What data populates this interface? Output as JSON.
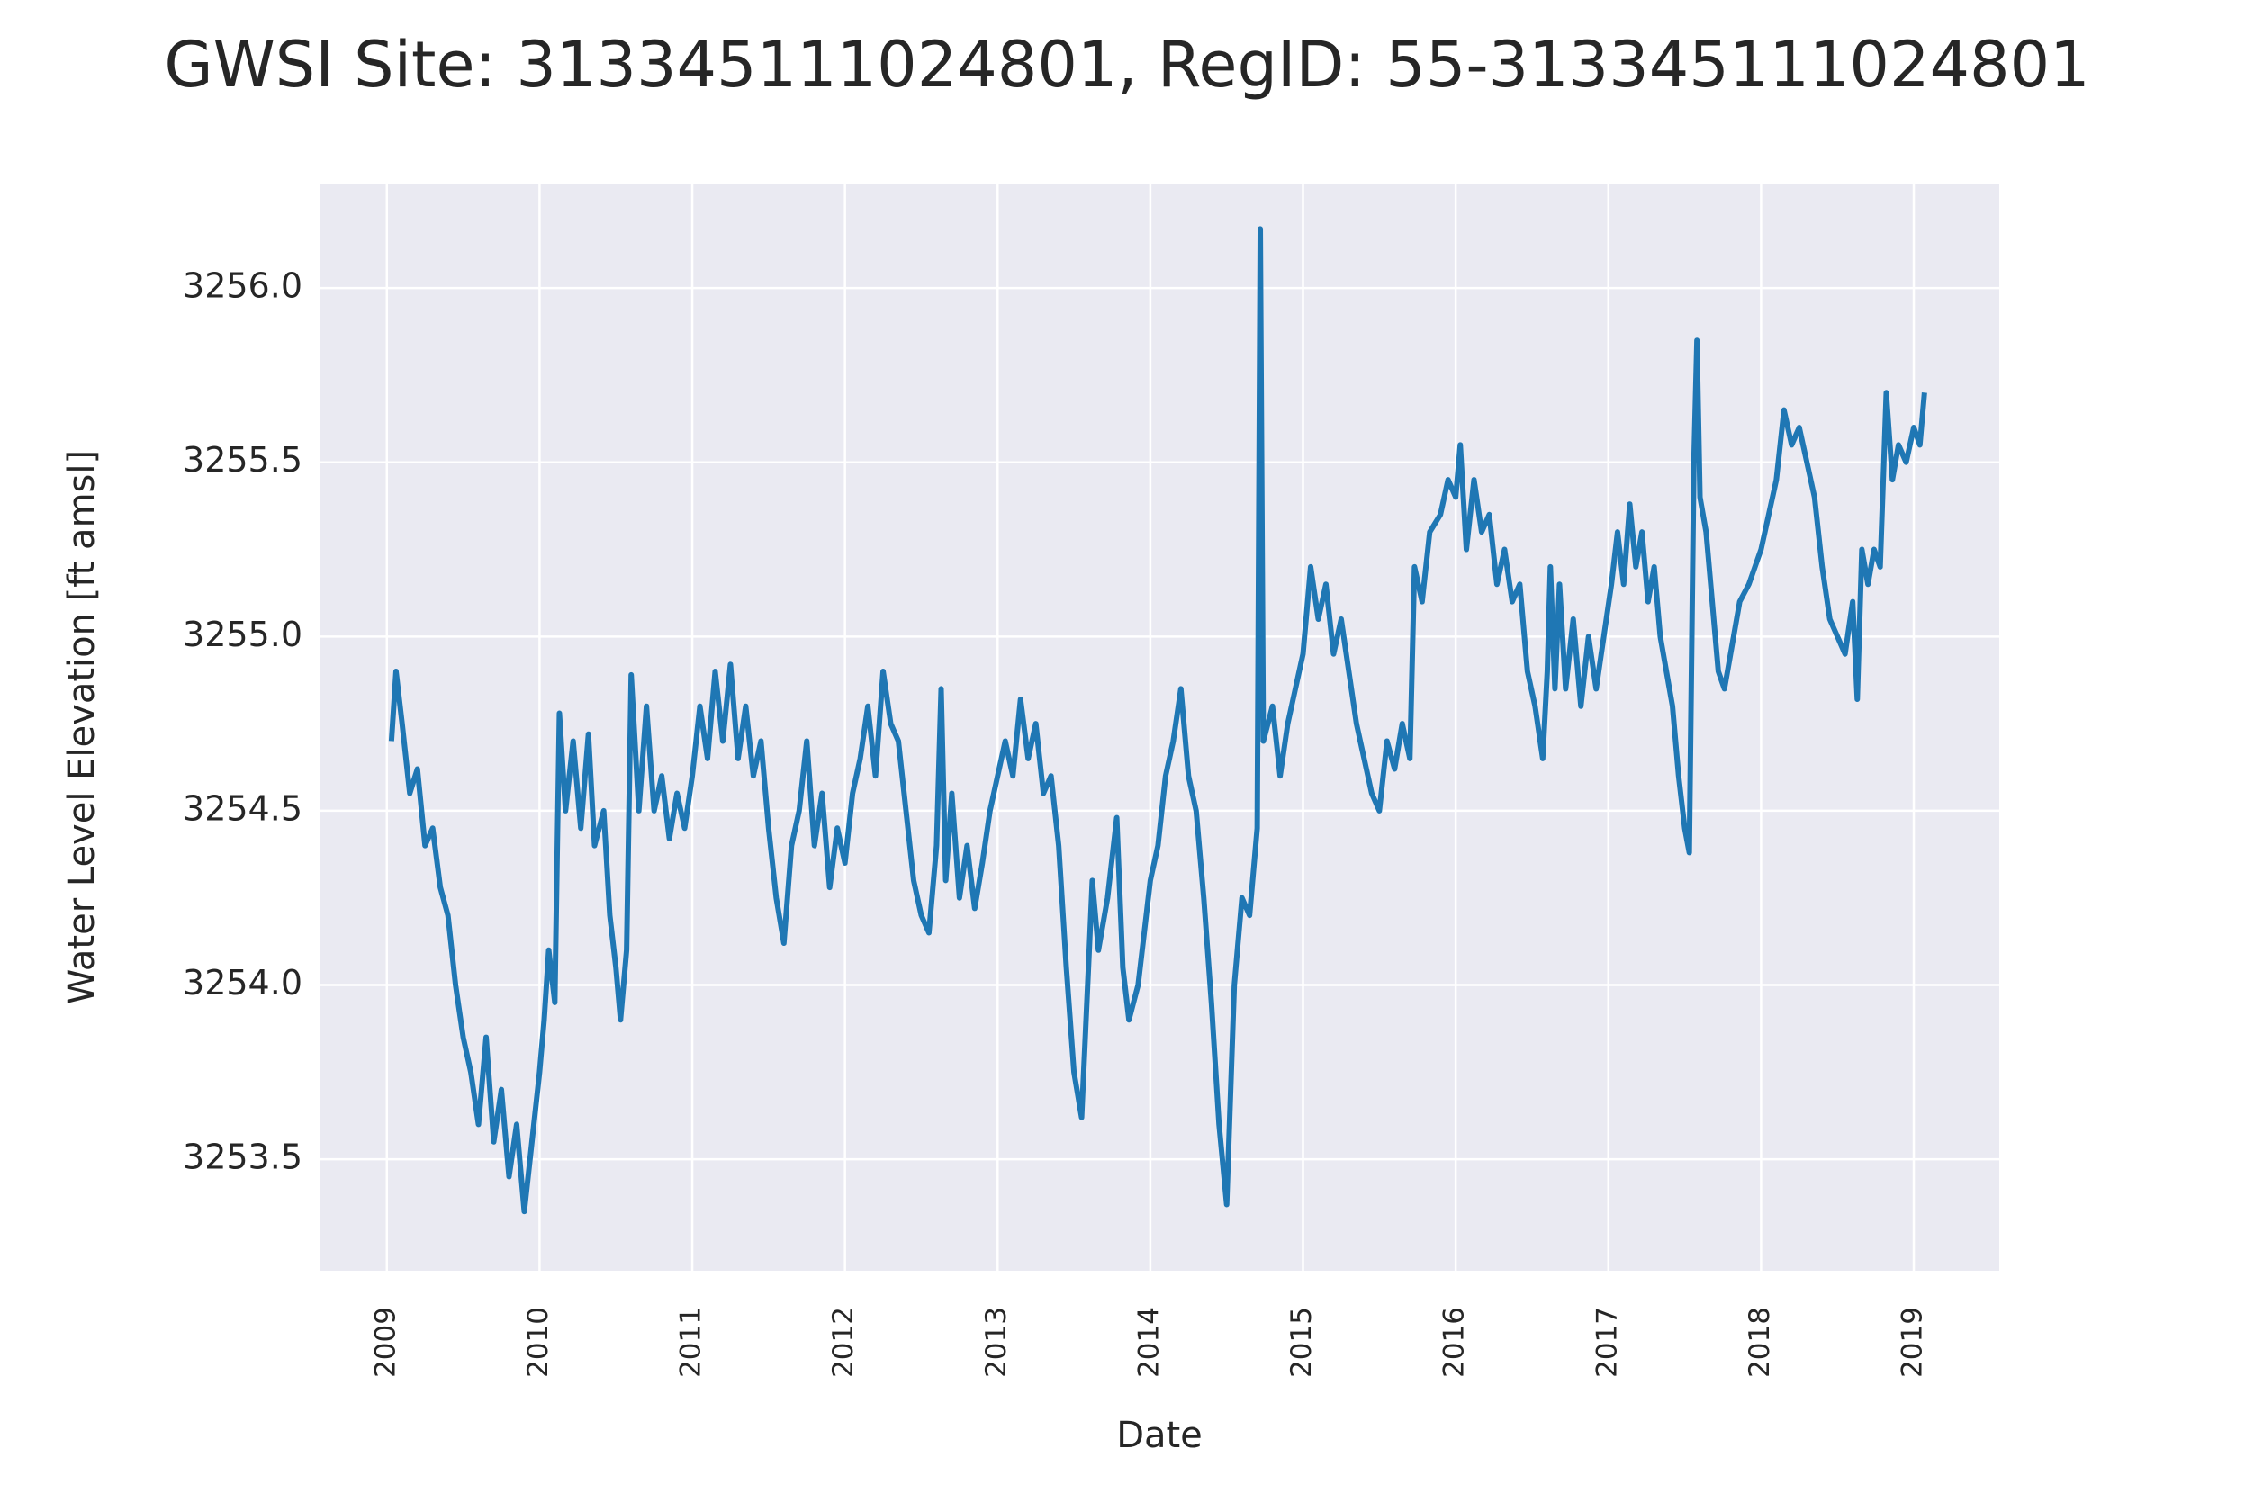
{
  "chart_data": {
    "type": "line",
    "title": "GWSI Site: 313345111024801, RegID: 55-313345111024801",
    "x_label": "Date",
    "y_label": "Water Level Elevation [ft amsl]",
    "grid": true,
    "xlim": [
      2008.565,
      2019.56
    ],
    "xticks": [
      2009,
      2010,
      2011,
      2012,
      2013,
      2014,
      2015,
      2016,
      2017,
      2018,
      2019
    ],
    "ylim": [
      3253.18,
      3256.3
    ],
    "yticks": [
      {
        "value": 3253.5,
        "label": "3253.5"
      },
      {
        "value": 3254,
        "label": "3254.0"
      },
      {
        "value": 3254.5,
        "label": "3254.5"
      },
      {
        "value": 3255,
        "label": "3255.0"
      },
      {
        "value": 3255.5,
        "label": "3255.5"
      },
      {
        "value": 3256,
        "label": "3256.0"
      }
    ],
    "x": [
      2009.03,
      2009.06,
      2009.1,
      2009.15,
      2009.2,
      2009.25,
      2009.3,
      2009.35,
      2009.4,
      2009.45,
      2009.5,
      2009.55,
      2009.6,
      2009.65,
      2009.7,
      2009.75,
      2009.8,
      2009.85,
      2009.9,
      2009.95,
      2010.0,
      2010.03,
      2010.06,
      2010.1,
      2010.13,
      2010.17,
      2010.22,
      2010.27,
      2010.32,
      2010.36,
      2010.42,
      2010.46,
      2010.5,
      2010.53,
      2010.57,
      2010.6,
      2010.65,
      2010.7,
      2010.75,
      2010.8,
      2010.85,
      2010.9,
      2010.95,
      2011.0,
      2011.05,
      2011.1,
      2011.15,
      2011.2,
      2011.25,
      2011.3,
      2011.35,
      2011.4,
      2011.45,
      2011.5,
      2011.55,
      2011.6,
      2011.65,
      2011.7,
      2011.75,
      2011.8,
      2011.85,
      2011.9,
      2011.95,
      2012.0,
      2012.05,
      2012.1,
      2012.15,
      2012.2,
      2012.25,
      2012.3,
      2012.35,
      2012.4,
      2012.45,
      2012.5,
      2012.55,
      2012.6,
      2012.63,
      2012.66,
      2012.7,
      2012.75,
      2012.8,
      2012.85,
      2012.9,
      2012.95,
      2013.0,
      2013.05,
      2013.1,
      2013.15,
      2013.2,
      2013.25,
      2013.3,
      2013.35,
      2013.4,
      2013.45,
      2013.5,
      2013.55,
      2013.6,
      2013.62,
      2013.66,
      2013.72,
      2013.78,
      2013.82,
      2013.86,
      2013.92,
      2013.96,
      2014.0,
      2014.05,
      2014.1,
      2014.15,
      2014.2,
      2014.25,
      2014.3,
      2014.35,
      2014.4,
      2014.45,
      2014.5,
      2014.55,
      2014.6,
      2014.65,
      2014.7,
      2014.72,
      2014.74,
      2014.8,
      2014.85,
      2014.9,
      2014.95,
      2015.0,
      2015.05,
      2015.1,
      2015.15,
      2015.2,
      2015.25,
      2015.3,
      2015.35,
      2015.4,
      2015.45,
      2015.5,
      2015.55,
      2015.6,
      2015.65,
      2015.7,
      2015.73,
      2015.78,
      2015.83,
      2015.9,
      2015.95,
      2016.0,
      2016.03,
      2016.07,
      2016.12,
      2016.17,
      2016.22,
      2016.27,
      2016.32,
      2016.37,
      2016.42,
      2016.47,
      2016.52,
      2016.57,
      2016.6,
      2016.62,
      2016.65,
      2016.68,
      2016.72,
      2016.77,
      2016.82,
      2016.87,
      2016.92,
      2016.97,
      2017.02,
      2017.06,
      2017.1,
      2017.14,
      2017.18,
      2017.22,
      2017.26,
      2017.3,
      2017.34,
      2017.38,
      2017.42,
      2017.46,
      2017.5,
      2017.53,
      2017.56,
      2017.58,
      2017.6,
      2017.64,
      2017.68,
      2017.72,
      2017.76,
      2017.8,
      2017.86,
      2017.92,
      2018.0,
      2018.05,
      2018.1,
      2018.15,
      2018.2,
      2018.25,
      2018.3,
      2018.35,
      2018.4,
      2018.45,
      2018.5,
      2018.55,
      2018.6,
      2018.63,
      2018.66,
      2018.7,
      2018.74,
      2018.78,
      2018.82,
      2018.86,
      2018.9,
      2018.95,
      2019.0,
      2019.04,
      2019.07
    ],
    "series": [
      {
        "color": "#1f77b4",
        "values": [
          3254.7,
          3254.9,
          3254.75,
          3254.55,
          3254.62,
          3254.4,
          3254.45,
          3254.28,
          3254.2,
          3254.0,
          3253.85,
          3253.75,
          3253.6,
          3253.85,
          3253.55,
          3253.7,
          3253.45,
          3253.6,
          3253.35,
          3253.55,
          3253.75,
          3253.9,
          3254.1,
          3253.95,
          3254.78,
          3254.5,
          3254.7,
          3254.45,
          3254.72,
          3254.4,
          3254.5,
          3254.2,
          3254.05,
          3253.9,
          3254.1,
          3254.89,
          3254.5,
          3254.8,
          3254.5,
          3254.6,
          3254.42,
          3254.55,
          3254.45,
          3254.6,
          3254.8,
          3254.65,
          3254.9,
          3254.7,
          3254.92,
          3254.65,
          3254.8,
          3254.6,
          3254.7,
          3254.45,
          3254.25,
          3254.12,
          3254.4,
          3254.5,
          3254.7,
          3254.4,
          3254.55,
          3254.28,
          3254.45,
          3254.35,
          3254.55,
          3254.65,
          3254.8,
          3254.6,
          3254.9,
          3254.75,
          3254.7,
          3254.5,
          3254.3,
          3254.2,
          3254.15,
          3254.4,
          3254.85,
          3254.3,
          3254.55,
          3254.25,
          3254.4,
          3254.22,
          3254.35,
          3254.5,
          3254.6,
          3254.7,
          3254.6,
          3254.82,
          3254.65,
          3254.75,
          3254.55,
          3254.6,
          3254.4,
          3254.05,
          3253.75,
          3253.62,
          3254.1,
          3254.3,
          3254.1,
          3254.25,
          3254.48,
          3254.05,
          3253.9,
          3254.0,
          3254.15,
          3254.3,
          3254.4,
          3254.6,
          3254.7,
          3254.85,
          3254.6,
          3254.5,
          3254.25,
          3253.95,
          3253.6,
          3253.37,
          3254.0,
          3254.25,
          3254.2,
          3254.45,
          3256.17,
          3254.7,
          3254.8,
          3254.6,
          3254.75,
          3254.85,
          3254.95,
          3255.2,
          3255.05,
          3255.15,
          3254.95,
          3255.05,
          3254.9,
          3254.75,
          3254.65,
          3254.55,
          3254.5,
          3254.7,
          3254.62,
          3254.75,
          3254.65,
          3255.2,
          3255.1,
          3255.3,
          3255.35,
          3255.45,
          3255.4,
          3255.55,
          3255.25,
          3255.45,
          3255.3,
          3255.35,
          3255.15,
          3255.25,
          3255.1,
          3255.15,
          3254.9,
          3254.8,
          3254.65,
          3254.9,
          3255.2,
          3254.85,
          3255.15,
          3254.85,
          3255.05,
          3254.8,
          3255.0,
          3254.85,
          3255.0,
          3255.15,
          3255.3,
          3255.15,
          3255.38,
          3255.2,
          3255.3,
          3255.1,
          3255.2,
          3255.0,
          3254.9,
          3254.8,
          3254.6,
          3254.45,
          3254.38,
          3255.5,
          3255.85,
          3255.4,
          3255.3,
          3255.1,
          3254.9,
          3254.85,
          3254.95,
          3255.1,
          3255.15,
          3255.25,
          3255.35,
          3255.45,
          3255.65,
          3255.55,
          3255.6,
          3255.5,
          3255.4,
          3255.2,
          3255.05,
          3255.0,
          3254.95,
          3255.1,
          3254.82,
          3255.25,
          3255.15,
          3255.25,
          3255.2,
          3255.7,
          3255.45,
          3255.55,
          3255.5,
          3255.6,
          3255.55,
          3255.7
        ]
      }
    ]
  }
}
